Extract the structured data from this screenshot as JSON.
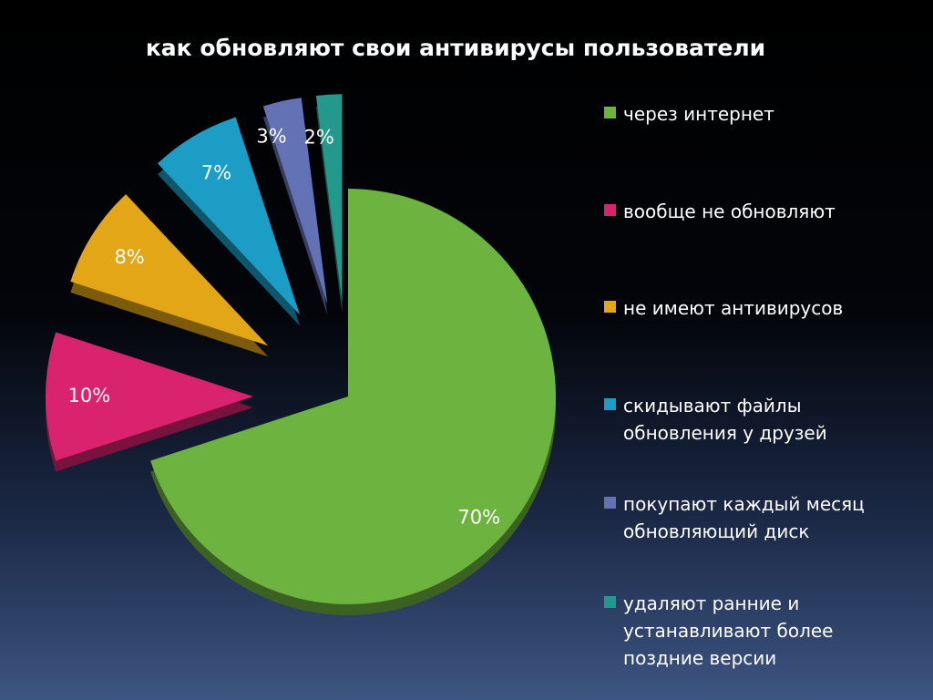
{
  "title": "как обновляют  свои антивирусы пользователи",
  "chart_data": {
    "type": "pie",
    "title": "как обновляют  свои антивирусы пользователи",
    "legend_position": "right",
    "slices": [
      {
        "label": "через интернет",
        "value": 70,
        "value_label": "70%",
        "color": "#6db33f"
      },
      {
        "label": "вообще не обновляют",
        "value": 10,
        "value_label": "10%",
        "color": "#d9236e"
      },
      {
        "label": "не имеют антивирусов",
        "value": 8,
        "value_label": "8%",
        "color": "#e3a617"
      },
      {
        "label": "скидывают файлы обновления у друзей",
        "value": 7,
        "value_label": "7%",
        "color": "#1c9dc6"
      },
      {
        "label": "покупают каждый месяц обновляющий диск",
        "value": 3,
        "value_label": "3%",
        "color": "#6372b5"
      },
      {
        "label": "удаляют ранние и устанавливают более поздние версии",
        "value": 2,
        "value_label": "2%",
        "color": "#22998c"
      }
    ]
  }
}
